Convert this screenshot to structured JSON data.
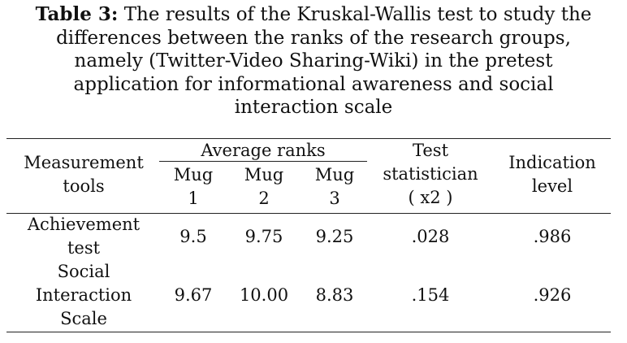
{
  "caption": {
    "label": "Table 3:",
    "line1": " The results of the Kruskal-Wallis test to study the",
    "line2": "differences between the ranks of the research groups,",
    "line3": "namely (Twitter-Video Sharing-Wiki) in the pretest",
    "line4": "application for informational awareness and social",
    "line5": "interaction scale"
  },
  "header": {
    "measurement_tools": [
      "Measurement",
      "tools"
    ],
    "average_ranks": "Average ranks",
    "mug1": [
      "Mug",
      "1"
    ],
    "mug2": [
      "Mug",
      "2"
    ],
    "mug3": [
      "Mug",
      "3"
    ],
    "test_statistician": [
      "Test",
      "statistician",
      "( x2 )"
    ],
    "indication_level": [
      "Indication",
      "level"
    ]
  },
  "rows": [
    {
      "tool": [
        "Achievement",
        "test"
      ],
      "mug1": "9.5",
      "mug2": "9.75",
      "mug3": "9.25",
      "test_stat": ".028",
      "indication": ".986"
    },
    {
      "tool": [
        "Social",
        "Interaction",
        "Scale"
      ],
      "mug1": "9.67",
      "mug2": "10.00",
      "mug3": "8.83",
      "test_stat": ".154",
      "indication": ".926"
    }
  ]
}
